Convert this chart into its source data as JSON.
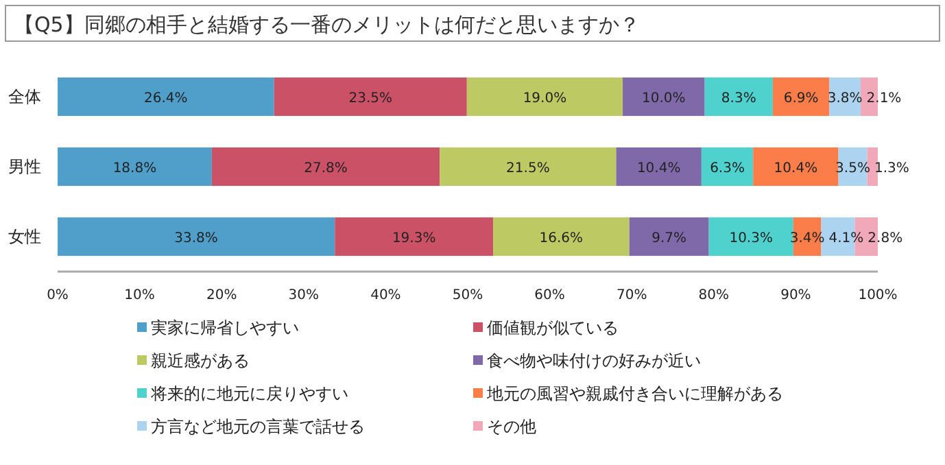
{
  "chart_data": {
    "type": "bar",
    "orientation": "horizontal",
    "stacked": true,
    "title": "【Q5】同郷の相手と結婚する一番のメリットは何だと思いますか？",
    "categories": [
      "全体",
      "男性",
      "女性"
    ],
    "xlim": [
      0,
      100
    ],
    "xticks": [
      {
        "value": 0,
        "label": "0%"
      },
      {
        "value": 10,
        "label": "10%"
      },
      {
        "value": 20,
        "label": "20%"
      },
      {
        "value": 30,
        "label": "30%"
      },
      {
        "value": 40,
        "label": "40%"
      },
      {
        "value": 50,
        "label": "50%"
      },
      {
        "value": 60,
        "label": "60%"
      },
      {
        "value": 70,
        "label": "70%"
      },
      {
        "value": 80,
        "label": "80%"
      },
      {
        "value": 90,
        "label": "90%"
      },
      {
        "value": 100,
        "label": "100%"
      }
    ],
    "legend": "bottom",
    "series": [
      {
        "name": "実家に帰省しやすい",
        "color": "#4f9fca",
        "values": [
          26.4,
          18.8,
          33.8
        ],
        "value_labels": [
          "26.4%",
          "18.8%",
          "33.8%"
        ]
      },
      {
        "name": "価値観が似ている",
        "color": "#cb5166",
        "values": [
          23.5,
          27.8,
          19.3
        ],
        "value_labels": [
          "23.5%",
          "27.8%",
          "19.3%"
        ]
      },
      {
        "name": "親近感がある",
        "color": "#bdc963",
        "values": [
          19.0,
          21.5,
          16.6
        ],
        "value_labels": [
          "19.0%",
          "21.5%",
          "16.6%"
        ]
      },
      {
        "name": "食べ物や味付けの好みが近い",
        "color": "#8069a9",
        "values": [
          10.0,
          10.4,
          9.7
        ],
        "value_labels": [
          "10.0%",
          "10.4%",
          "9.7%"
        ]
      },
      {
        "name": "将来的に地元に戻りやすい",
        "color": "#4fd1ce",
        "values": [
          8.3,
          6.3,
          10.3
        ],
        "value_labels": [
          "8.3%",
          "6.3%",
          "10.3%"
        ]
      },
      {
        "name": "地元の風習や親戚付き合いに理解がある",
        "color": "#fb7d4a",
        "values": [
          6.9,
          10.4,
          3.4
        ],
        "value_labels": [
          "6.9%",
          "10.4%",
          "3.4%"
        ]
      },
      {
        "name": "方言など地元の言葉で話せる",
        "color": "#acd3ef",
        "values": [
          3.8,
          3.5,
          4.1
        ],
        "value_labels": [
          "3.8%",
          "3.5%",
          "4.1%"
        ]
      },
      {
        "name": "その他",
        "color": "#f1a8b8",
        "values": [
          2.1,
          1.3,
          2.8
        ],
        "value_labels": [
          "2.1%",
          "1.3%",
          "2.8%"
        ]
      }
    ]
  }
}
